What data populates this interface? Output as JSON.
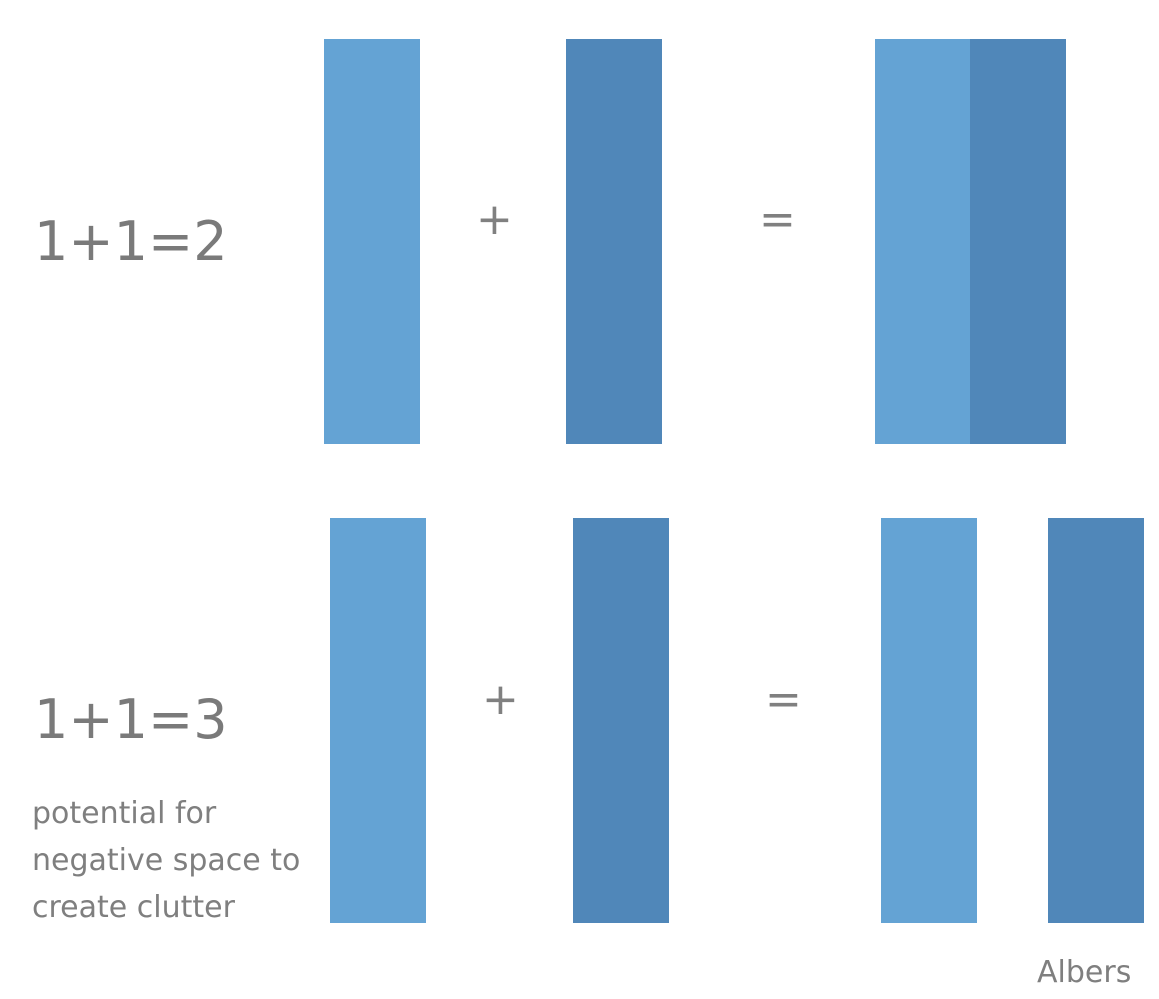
{
  "row1": {
    "equation": "1+1=2",
    "plus": "+",
    "equals": "="
  },
  "row2": {
    "equation": "1+1=3",
    "plus": "+",
    "equals": "=",
    "note_lines": [
      "potential for",
      "negative space to",
      "create clutter"
    ]
  },
  "credit": "Albers",
  "colors": {
    "light_bar": "#64a3d4",
    "dark_bar": "#5087b9",
    "text": "#7f7f7f"
  }
}
